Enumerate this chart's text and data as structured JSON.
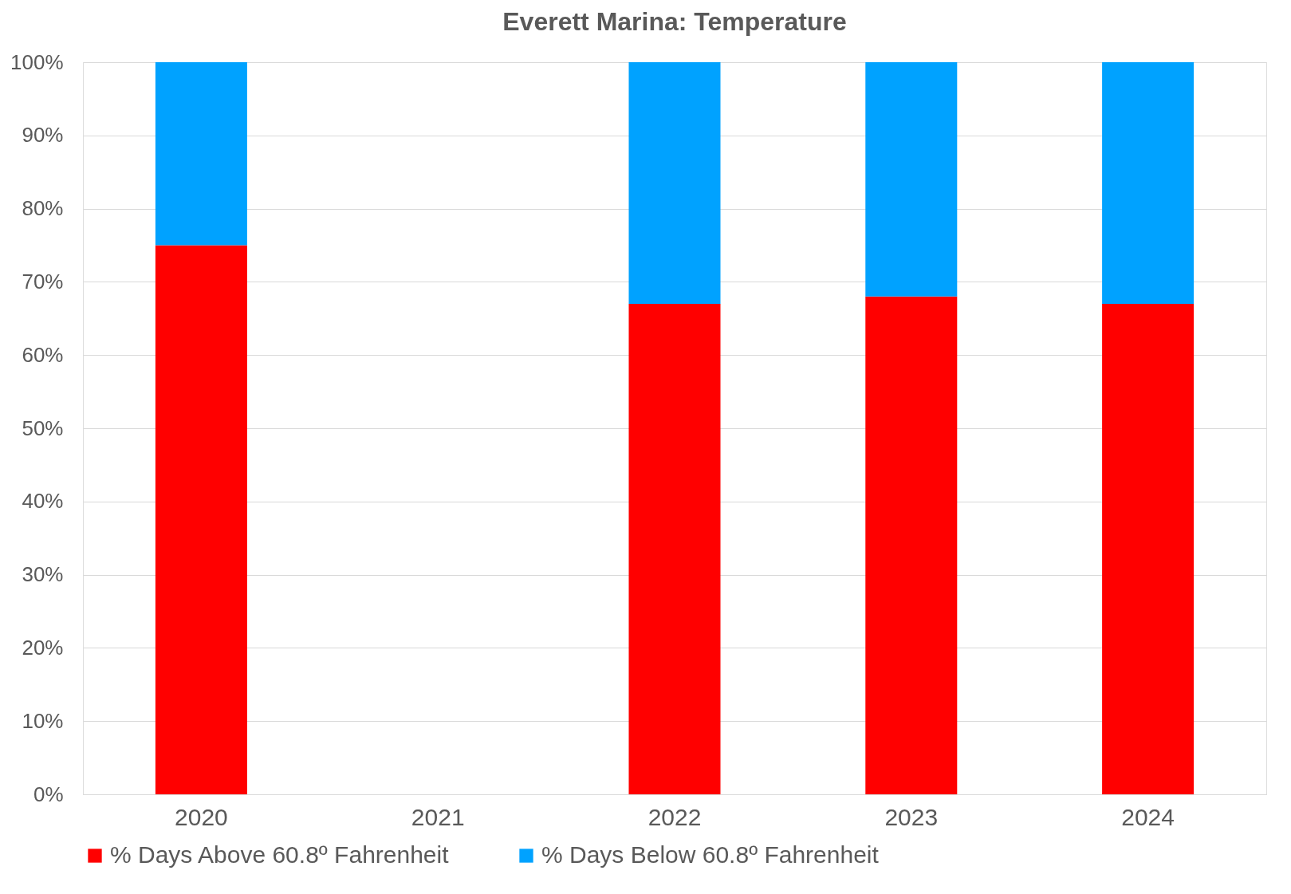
{
  "chart_data": {
    "type": "bar",
    "title": "Everett Marina: Temperature",
    "categories": [
      "2020",
      "2021",
      "2022",
      "2023",
      "2024"
    ],
    "series": [
      {
        "name": "% Days Above 60.8º Fahrenheit",
        "color": "#ff0000",
        "values": [
          75,
          null,
          67,
          68,
          67
        ]
      },
      {
        "name": "% Days Below 60.8º Fahrenheit",
        "color": "#00a2ff",
        "values": [
          25,
          null,
          33,
          32,
          33
        ]
      }
    ],
    "stacked": true,
    "ylim": [
      0,
      100
    ],
    "yticks": [
      {
        "value": 0,
        "label": "0%"
      },
      {
        "value": 10,
        "label": "10%"
      },
      {
        "value": 20,
        "label": "20%"
      },
      {
        "value": 30,
        "label": "30%"
      },
      {
        "value": 40,
        "label": "40%"
      },
      {
        "value": 50,
        "label": "50%"
      },
      {
        "value": 60,
        "label": "60%"
      },
      {
        "value": 70,
        "label": "70%"
      },
      {
        "value": 80,
        "label": "80%"
      },
      {
        "value": 90,
        "label": "90%"
      },
      {
        "value": 100,
        "label": "100%"
      }
    ],
    "grid": "y",
    "legend": "bottom"
  }
}
